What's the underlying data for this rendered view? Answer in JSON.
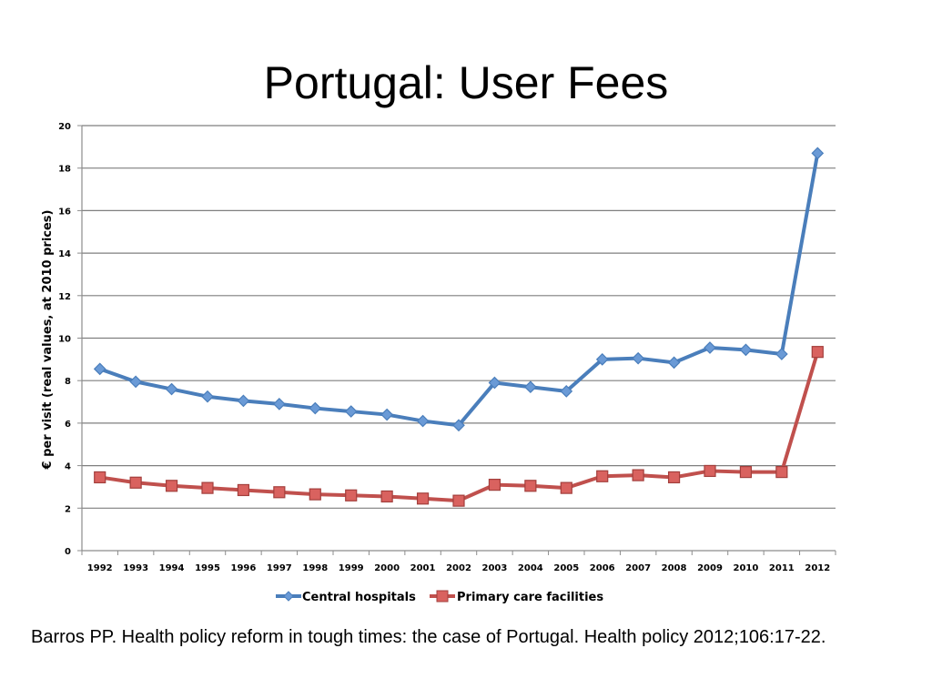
{
  "slide": {
    "title": "Portugal: User Fees",
    "citation": "Barros PP. Health policy reform in tough times: the case of Portugal. Health policy 2012;106:17-22."
  },
  "chart_data": {
    "type": "line",
    "title": "",
    "xlabel": "",
    "ylabel": "€ per visit (real values, at 2010 prices)",
    "ylim": [
      0,
      20
    ],
    "yticks": [
      0,
      2,
      4,
      6,
      8,
      10,
      12,
      14,
      16,
      18,
      20
    ],
    "grid": true,
    "legend_position": "bottom",
    "categories": [
      "1992",
      "1993",
      "1994",
      "1995",
      "1996",
      "1997",
      "1998",
      "1999",
      "2000",
      "2001",
      "2002",
      "2003",
      "2004",
      "2005",
      "2006",
      "2007",
      "2008",
      "2009",
      "2010",
      "2011",
      "2012"
    ],
    "series": [
      {
        "name": "Central hospitals",
        "color": "#4A7EBB",
        "marker": "diamond",
        "values": [
          8.55,
          7.95,
          7.6,
          7.25,
          7.05,
          6.9,
          6.7,
          6.55,
          6.4,
          6.1,
          5.9,
          7.9,
          7.7,
          7.5,
          9.0,
          9.05,
          8.85,
          9.55,
          9.45,
          9.25,
          18.7
        ]
      },
      {
        "name": "Primary care facilities",
        "color": "#C0504D",
        "marker": "square",
        "values": [
          3.45,
          3.2,
          3.05,
          2.95,
          2.85,
          2.75,
          2.65,
          2.6,
          2.55,
          2.45,
          2.35,
          3.1,
          3.05,
          2.95,
          3.5,
          3.55,
          3.45,
          3.75,
          3.7,
          3.7,
          9.35
        ]
      }
    ]
  }
}
